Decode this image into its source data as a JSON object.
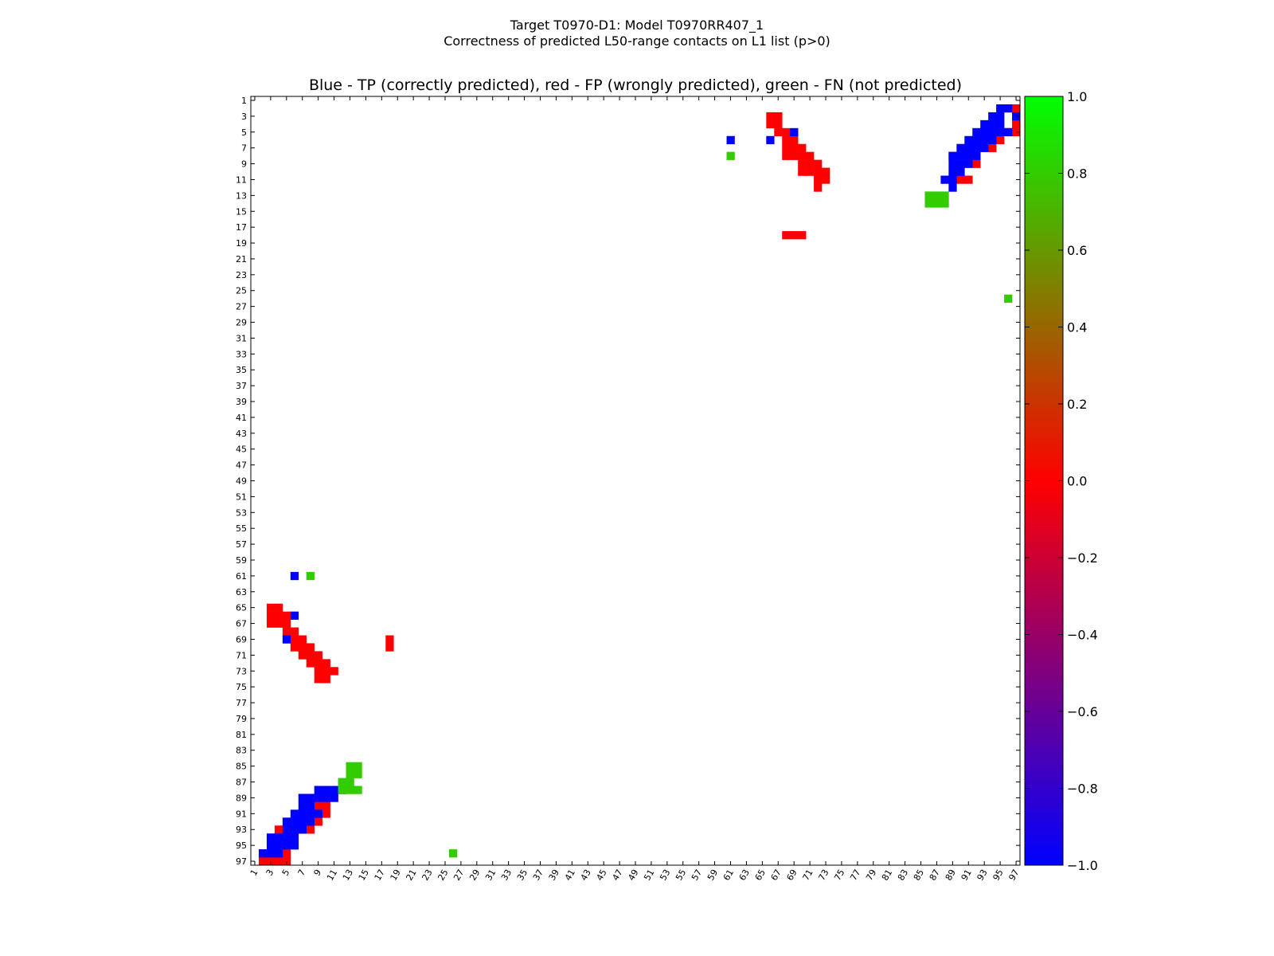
{
  "page": {
    "suptitle_line1": "Target T0970-D1: Model T0970RR407_1",
    "suptitle_line2": "Correctness of predicted L50-range contacts on L1 list (p>0)"
  },
  "chart_data": {
    "type": "heatmap",
    "title": "Blue - TP (correctly predicted), red - FP (wrongly predicted), green - FN (not predicted)",
    "xlabel": "",
    "ylabel": "",
    "n": 97,
    "xlim": [
      1,
      97
    ],
    "ylim": [
      1,
      97
    ],
    "x_ticks": [
      1,
      3,
      5,
      7,
      9,
      11,
      13,
      15,
      17,
      19,
      21,
      23,
      25,
      27,
      29,
      31,
      33,
      35,
      37,
      39,
      41,
      43,
      45,
      47,
      49,
      51,
      53,
      55,
      57,
      59,
      61,
      63,
      65,
      67,
      69,
      71,
      73,
      75,
      77,
      79,
      81,
      83,
      85,
      87,
      89,
      91,
      93,
      95,
      97
    ],
    "y_ticks": [
      1,
      3,
      5,
      7,
      9,
      11,
      13,
      15,
      17,
      19,
      21,
      23,
      25,
      27,
      29,
      31,
      33,
      35,
      37,
      39,
      41,
      43,
      45,
      47,
      49,
      51,
      53,
      55,
      57,
      59,
      61,
      63,
      65,
      67,
      69,
      71,
      73,
      75,
      77,
      79,
      81,
      83,
      85,
      87,
      89,
      91,
      93,
      95,
      97
    ],
    "colorbar": {
      "range": [
        -1.0,
        1.0
      ],
      "ticks": [
        "1.0",
        "0.8",
        "0.6",
        "0.4",
        "0.2",
        "0.0",
        "−0.2",
        "−0.4",
        "−0.6",
        "−0.8",
        "−1.0"
      ],
      "tick_values": [
        1.0,
        0.8,
        0.6,
        0.4,
        0.2,
        0.0,
        -0.2,
        -0.4,
        -0.6,
        -0.8,
        -1.0
      ],
      "gradient_colors": [
        "#0000ff",
        "#ff0000",
        "#00ff00"
      ]
    },
    "colors": {
      "tp": "#0000ff",
      "fp": "#ff0000",
      "fn": "#33cc00"
    },
    "tp_cells": [
      [
        95,
        2
      ],
      [
        96,
        2
      ],
      [
        94,
        3
      ],
      [
        95,
        3
      ],
      [
        97,
        3
      ],
      [
        93,
        4
      ],
      [
        94,
        4
      ],
      [
        95,
        4
      ],
      [
        92,
        5
      ],
      [
        93,
        5
      ],
      [
        94,
        5
      ],
      [
        95,
        5
      ],
      [
        96,
        5
      ],
      [
        61,
        6
      ],
      [
        66,
        6
      ],
      [
        91,
        6
      ],
      [
        92,
        6
      ],
      [
        93,
        6
      ],
      [
        94,
        6
      ],
      [
        69,
        5
      ],
      [
        90,
        7
      ],
      [
        91,
        7
      ],
      [
        92,
        7
      ],
      [
        93,
        7
      ],
      [
        89,
        8
      ],
      [
        90,
        8
      ],
      [
        91,
        8
      ],
      [
        92,
        8
      ],
      [
        89,
        9
      ],
      [
        90,
        9
      ],
      [
        91,
        9
      ],
      [
        89,
        10
      ],
      [
        90,
        10
      ],
      [
        88,
        11
      ],
      [
        89,
        11
      ],
      [
        89,
        12
      ],
      [
        6,
        61
      ],
      [
        6,
        66
      ],
      [
        5,
        69
      ]
    ],
    "fp_cells": [
      [
        66,
        3
      ],
      [
        67,
        3
      ],
      [
        66,
        4
      ],
      [
        67,
        4
      ],
      [
        67,
        5
      ],
      [
        68,
        5
      ],
      [
        97,
        5
      ],
      [
        96,
        5
      ],
      [
        68,
        6
      ],
      [
        69,
        6
      ],
      [
        68,
        7
      ],
      [
        69,
        7
      ],
      [
        70,
        7
      ],
      [
        68,
        8
      ],
      [
        69,
        8
      ],
      [
        70,
        8
      ],
      [
        71,
        8
      ],
      [
        70,
        9
      ],
      [
        71,
        9
      ],
      [
        72,
        9
      ],
      [
        70,
        10
      ],
      [
        71,
        10
      ],
      [
        72,
        10
      ],
      [
        73,
        10
      ],
      [
        72,
        11
      ],
      [
        73,
        11
      ],
      [
        72,
        12
      ],
      [
        68,
        18
      ],
      [
        69,
        18
      ],
      [
        70,
        18
      ],
      [
        97,
        2
      ],
      [
        97,
        4
      ],
      [
        93,
        5
      ],
      [
        92,
        6
      ],
      [
        95,
        6
      ],
      [
        94,
        7
      ],
      [
        89,
        8
      ],
      [
        92,
        9
      ],
      [
        90,
        11
      ],
      [
        91,
        11
      ],
      [
        3,
        65
      ],
      [
        4,
        65
      ],
      [
        3,
        66
      ],
      [
        4,
        66
      ],
      [
        5,
        66
      ],
      [
        3,
        67
      ],
      [
        4,
        67
      ],
      [
        5,
        67
      ],
      [
        5,
        68
      ],
      [
        6,
        68
      ],
      [
        6,
        69
      ],
      [
        7,
        69
      ],
      [
        6,
        70
      ],
      [
        7,
        70
      ],
      [
        8,
        70
      ],
      [
        7,
        71
      ],
      [
        8,
        71
      ],
      [
        9,
        71
      ],
      [
        8,
        72
      ],
      [
        9,
        72
      ],
      [
        10,
        72
      ],
      [
        9,
        73
      ],
      [
        10,
        73
      ],
      [
        11,
        73
      ],
      [
        9,
        74
      ],
      [
        10,
        74
      ],
      [
        18,
        69
      ],
      [
        18,
        70
      ],
      [
        9,
        90
      ],
      [
        10,
        90
      ],
      [
        10,
        91
      ],
      [
        6,
        92
      ],
      [
        9,
        92
      ],
      [
        4,
        93
      ],
      [
        5,
        93
      ],
      [
        8,
        93
      ],
      [
        2,
        96
      ],
      [
        5,
        96
      ],
      [
        2,
        97
      ],
      [
        4,
        97
      ],
      [
        5,
        97
      ],
      [
        3,
        97
      ]
    ],
    "fn_cells": [
      [
        61,
        8
      ],
      [
        86,
        13
      ],
      [
        87,
        13
      ],
      [
        88,
        13
      ],
      [
        86,
        14
      ],
      [
        87,
        14
      ],
      [
        88,
        14
      ],
      [
        96,
        26
      ],
      [
        8,
        61
      ],
      [
        13,
        85
      ],
      [
        14,
        85
      ],
      [
        13,
        86
      ],
      [
        14,
        86
      ],
      [
        12,
        87
      ],
      [
        13,
        87
      ],
      [
        12,
        88
      ],
      [
        13,
        88
      ],
      [
        14,
        88
      ],
      [
        26,
        96
      ]
    ],
    "tp_fill_cells": [
      [
        3,
        96
      ],
      [
        4,
        96
      ],
      [
        3,
        95
      ],
      [
        4,
        95
      ],
      [
        5,
        95
      ],
      [
        4,
        94
      ],
      [
        5,
        94
      ],
      [
        6,
        94
      ],
      [
        5,
        93
      ],
      [
        6,
        93
      ],
      [
        7,
        93
      ],
      [
        5,
        92
      ],
      [
        7,
        92
      ],
      [
        8,
        92
      ],
      [
        6,
        91
      ],
      [
        7,
        91
      ],
      [
        8,
        91
      ],
      [
        9,
        91
      ],
      [
        7,
        90
      ],
      [
        8,
        90
      ],
      [
        8,
        89
      ],
      [
        9,
        89
      ],
      [
        10,
        89
      ],
      [
        11,
        89
      ],
      [
        11,
        88
      ],
      [
        12,
        88
      ],
      [
        2,
        96
      ],
      [
        6,
        95
      ],
      [
        3,
        94
      ],
      [
        6,
        92
      ],
      [
        9,
        88
      ],
      [
        10,
        88
      ],
      [
        7,
        89
      ]
    ]
  }
}
